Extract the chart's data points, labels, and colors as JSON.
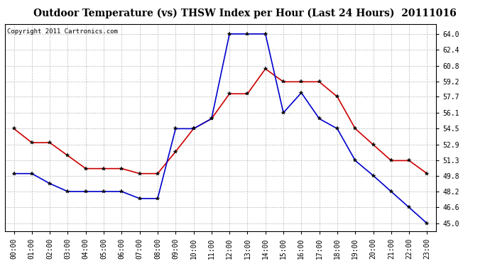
{
  "title": "Outdoor Temperature (vs) THSW Index per Hour (Last 24 Hours)  20111016",
  "copyright": "Copyright 2011 Cartronics.com",
  "hours": [
    "00:00",
    "01:00",
    "02:00",
    "03:00",
    "04:00",
    "05:00",
    "06:00",
    "07:00",
    "08:00",
    "09:00",
    "10:00",
    "11:00",
    "12:00",
    "13:00",
    "14:00",
    "15:00",
    "16:00",
    "17:00",
    "18:00",
    "19:00",
    "20:00",
    "21:00",
    "22:00",
    "23:00"
  ],
  "temp_red": [
    54.5,
    53.1,
    53.1,
    51.8,
    50.5,
    50.5,
    50.5,
    50.0,
    50.0,
    52.2,
    54.5,
    55.5,
    58.0,
    58.0,
    60.5,
    59.2,
    59.2,
    59.2,
    57.7,
    54.5,
    52.9,
    51.3,
    51.3,
    50.0
  ],
  "thsw_blue": [
    50.0,
    50.0,
    49.0,
    48.2,
    48.2,
    48.2,
    48.2,
    47.5,
    47.5,
    54.5,
    54.5,
    55.5,
    64.0,
    64.0,
    64.0,
    56.1,
    58.1,
    55.5,
    54.5,
    51.3,
    49.8,
    48.2,
    46.6,
    45.0
  ],
  "ylim_min": 44.2,
  "ylim_max": 65.0,
  "yticks": [
    45.0,
    46.6,
    48.2,
    49.8,
    51.3,
    52.9,
    54.5,
    56.1,
    57.7,
    59.2,
    60.8,
    62.4,
    64.0
  ],
  "bg_color": "#ffffff",
  "grid_color": "#bbbbbb",
  "red_color": "#cc0000",
  "blue_color": "#0000cc",
  "title_fontsize": 10,
  "copyright_fontsize": 6.5,
  "tick_fontsize": 7
}
